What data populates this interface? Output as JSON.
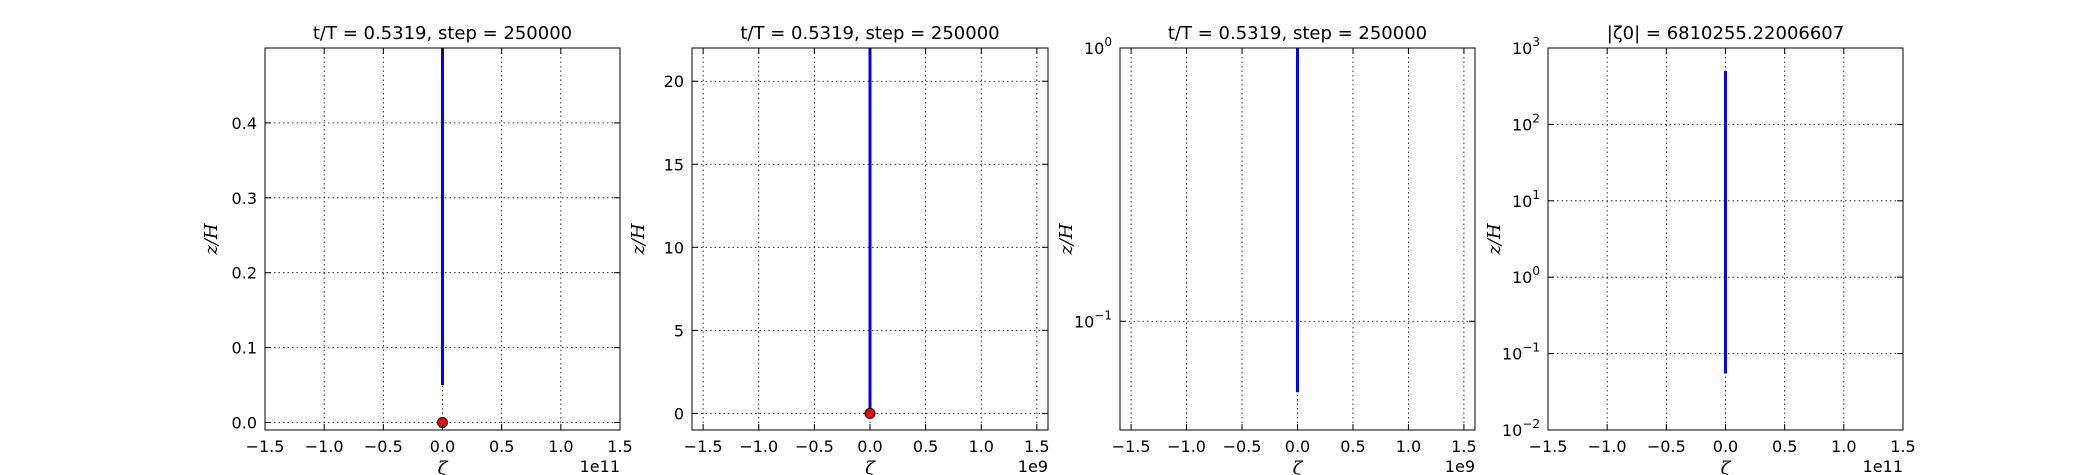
{
  "chart_data": [
    {
      "type": "line",
      "title": "t/T = 0.5319, step = 250000",
      "xlabel": "ζ",
      "ylabel": "z/H",
      "x_offset_label": "1e11",
      "xlim": [
        -1.5,
        1.5
      ],
      "ylim": [
        -0.01,
        0.5
      ],
      "y_scale": "linear",
      "xticks": [
        "−1.5",
        "−1.0",
        "−0.5",
        "0.0",
        "0.5",
        "1.0",
        "1.5"
      ],
      "yticks": [
        "0.0",
        "0.1",
        "0.2",
        "0.3",
        "0.4"
      ],
      "grid": true,
      "series": [
        {
          "color": "#0000ff",
          "x": [
            0,
            0
          ],
          "y": [
            0.05,
            0.5
          ]
        }
      ],
      "markers": [
        {
          "x": 0,
          "y": 0,
          "color": "#ff0000"
        }
      ]
    },
    {
      "type": "line",
      "title": "t/T = 0.5319, step = 250000",
      "xlabel": "ζ",
      "ylabel": "z/H",
      "x_offset_label": "1e9",
      "xlim": [
        -1.6,
        1.6
      ],
      "ylim": [
        -1,
        22
      ],
      "y_scale": "linear",
      "xticks": [
        "−1.5",
        "−1.0",
        "−0.5",
        "0.0",
        "0.5",
        "1.0",
        "1.5"
      ],
      "yticks": [
        "0",
        "5",
        "10",
        "15",
        "20"
      ],
      "grid": true,
      "series": [
        {
          "color": "#0000ff",
          "x": [
            0,
            0
          ],
          "y": [
            0.2,
            22
          ]
        }
      ],
      "markers": [
        {
          "x": 0,
          "y": 0,
          "color": "#ff0000"
        }
      ]
    },
    {
      "type": "line",
      "title": "t/T = 0.5319, step = 250000",
      "xlabel": "ζ",
      "ylabel": "z/H",
      "x_offset_label": "1e9",
      "xlim": [
        -1.6,
        1.6
      ],
      "ylim": [
        0.04,
        1
      ],
      "y_scale": "log",
      "xticks": [
        "−1.5",
        "−1.0",
        "−0.5",
        "0.0",
        "0.5",
        "1.0",
        "1.5"
      ],
      "yticks": [
        "10^-1",
        "10^0"
      ],
      "grid": true,
      "series": [
        {
          "color": "#0000ff",
          "x": [
            0,
            0
          ],
          "y": [
            0.055,
            1
          ]
        }
      ]
    },
    {
      "type": "line",
      "title": "|ζ0| = 6810255.22006607",
      "xlabel": "ζ",
      "ylabel": "z/H",
      "x_offset_label": "1e11",
      "xlim": [
        -1.5,
        1.5
      ],
      "ylim": [
        0.01,
        1000
      ],
      "y_scale": "log",
      "xticks": [
        "−1.5",
        "−1.0",
        "−0.5",
        "0.0",
        "0.5",
        "1.0",
        "1.5"
      ],
      "yticks": [
        "10^-2",
        "10^-1",
        "10^0",
        "10^1",
        "10^2",
        "10^3"
      ],
      "grid": true,
      "series": [
        {
          "color": "#0000ff",
          "x": [
            0,
            0
          ],
          "y": [
            0.055,
            500
          ]
        }
      ]
    }
  ]
}
